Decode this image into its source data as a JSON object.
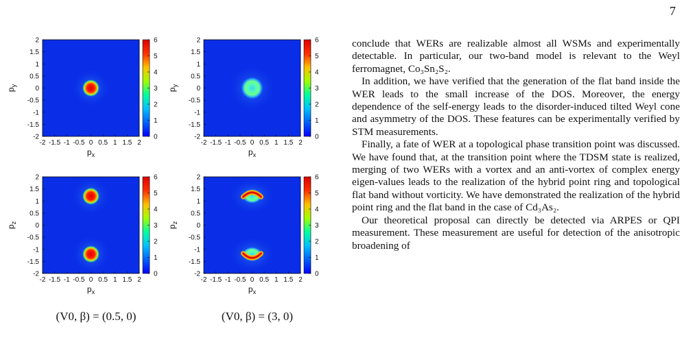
{
  "page_number": "7",
  "figure": {
    "tick_values": [
      "-2",
      "-1.5",
      "-1",
      "-0.5",
      "0",
      "0.5",
      "1",
      "1.5",
      "2"
    ],
    "x_ticks": [
      "-2",
      "-1.5",
      "-1",
      "-0.5",
      "0",
      "0.5",
      "1",
      "1.5",
      "2"
    ],
    "colorbar_ticks": [
      "0",
      "1",
      "2",
      "3",
      "4",
      "5",
      "6"
    ],
    "colors": {
      "background": "#0a2ee8",
      "colormap": [
        "#0000ff",
        "#0060ff",
        "#00c0ff",
        "#00ffa0",
        "#a0ff00",
        "#ffc000",
        "#ff3000",
        "#e00000"
      ]
    },
    "panels": [
      {
        "xlabel": "p_x",
        "ylabel": "p_y",
        "xlabel_main": "p",
        "xlabel_sub": "x",
        "ylabel_main": "p",
        "ylabel_sub": "y"
      },
      {
        "xlabel": "p_x",
        "ylabel": "p_y",
        "xlabel_main": "p",
        "xlabel_sub": "x",
        "ylabel_main": "p",
        "ylabel_sub": "y"
      },
      {
        "xlabel": "p_x",
        "ylabel": "p_z",
        "xlabel_main": "p",
        "xlabel_sub": "x",
        "ylabel_main": "p",
        "ylabel_sub": "z"
      },
      {
        "xlabel": "p_x",
        "ylabel": "p_z",
        "xlabel_main": "p",
        "xlabel_sub": "x",
        "ylabel_main": "p",
        "ylabel_sub": "z"
      }
    ],
    "captions": [
      "(V0, β) = (0.5, 0)",
      "(V0, β) = (3, 0)"
    ]
  },
  "chart_data": [
    {
      "type": "heatmap",
      "xlabel": "p_x",
      "ylabel": "p_y",
      "xlim": [
        -2,
        2
      ],
      "ylim": [
        -2,
        2
      ],
      "clim": [
        0,
        6
      ],
      "features": [
        {
          "kind": "spot",
          "x": 0,
          "y": 0,
          "value": 6
        }
      ]
    },
    {
      "type": "heatmap",
      "xlabel": "p_x",
      "ylabel": "p_y",
      "xlim": [
        -2,
        2
      ],
      "ylim": [
        -2,
        2
      ],
      "clim": [
        0,
        6
      ],
      "features": [
        {
          "kind": "ring",
          "x": 0,
          "y": 0,
          "value": 2.5
        }
      ]
    },
    {
      "type": "heatmap",
      "xlabel": "p_x",
      "ylabel": "p_z",
      "xlim": [
        -2,
        2
      ],
      "ylim": [
        -2,
        2
      ],
      "clim": [
        0,
        6
      ],
      "features": [
        {
          "kind": "spot",
          "x": 0,
          "y": 1.2,
          "value": 6
        },
        {
          "kind": "spot",
          "x": 0,
          "y": -1.2,
          "value": 6
        }
      ]
    },
    {
      "type": "heatmap",
      "xlabel": "p_x",
      "ylabel": "p_z",
      "xlim": [
        -2,
        2
      ],
      "ylim": [
        -2,
        2
      ],
      "clim": [
        0,
        6
      ],
      "features": [
        {
          "kind": "arc",
          "x": 0,
          "y": 1.2,
          "value": 5
        },
        {
          "kind": "arc",
          "x": 0,
          "y": -1.2,
          "value": 5
        }
      ]
    }
  ],
  "body_text": {
    "p1": "conclude that WERs are realizable almost all WSMs and experimentally detectable. In particular, our two-band model is relevant to the Weyl ferromagnet, Co3Sn2S2.",
    "p1_pre": "conclude that WERs are realizable almost all WSMs and experimentally detectable. In particular, our two-band model is relevant to the Weyl ferromagnet, ",
    "p1_formula": "Co₃Sn₂S₂.",
    "p2": "In addition, we have verified that the generation of the flat band inside the WER leads to the small increase of the DOS. Moreover, the energy dependence of the self-energy leads to the disorder-induced tilted Weyl cone and asymmetry of the DOS. These features can be experimentally verified by STM measurements.",
    "p3_pre": "Finally, a fate of WER at a topological phase transition point was discussed. We have found that, at the transition point where the TDSM state is realized, merging of two WERs with a vortex and an anti-vortex of complex energy eigen-values leads to the realization of the hybrid point ring and topological flat band without vorticity. We have demonstrated the realization of the hybrid point ring and the flat band in the case of ",
    "p3_formula": "Cd₃As₂.",
    "p4": "Our theoretical proposal can directly be detected via ARPES or QPI measurement. These measurement are useful for detection of the anisotropic broadening of"
  }
}
